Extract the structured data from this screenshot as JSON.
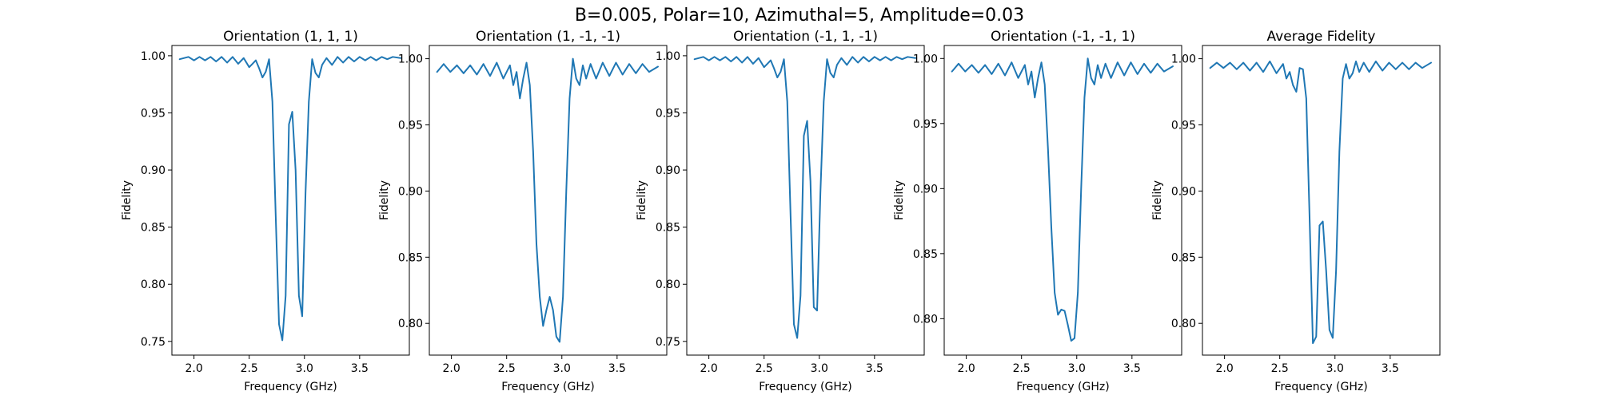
{
  "figure": {
    "suptitle": "B=0.005, Polar=10, Azimuthal=5, Amplitude=0.03",
    "series_color": "#1f77b4"
  },
  "chart_data": [
    {
      "type": "line",
      "title": "Orientation (1, 1, 1)",
      "xlabel": "Frequency (GHz)",
      "ylabel": "Fidelity",
      "xlim": [
        1.8,
        3.95
      ],
      "ylim": [
        0.738,
        1.009
      ],
      "xticks": [
        2.0,
        2.5,
        3.0,
        3.5
      ],
      "xtick_labels": [
        "2.0",
        "2.5",
        "3.0",
        "3.5"
      ],
      "yticks": [
        0.75,
        0.8,
        0.85,
        0.9,
        0.95,
        1.0
      ],
      "ytick_labels": [
        "0.75",
        "0.80",
        "0.85",
        "0.90",
        "0.95",
        "1.00"
      ],
      "x": [
        1.87,
        1.95,
        2.0,
        2.05,
        2.1,
        2.15,
        2.2,
        2.25,
        2.3,
        2.35,
        2.4,
        2.45,
        2.5,
        2.53,
        2.56,
        2.59,
        2.62,
        2.65,
        2.68,
        2.71,
        2.74,
        2.77,
        2.8,
        2.83,
        2.86,
        2.89,
        2.92,
        2.95,
        2.98,
        3.01,
        3.04,
        3.07,
        3.1,
        3.13,
        3.16,
        3.2,
        3.25,
        3.3,
        3.35,
        3.4,
        3.45,
        3.5,
        3.55,
        3.6,
        3.65,
        3.7,
        3.75,
        3.8,
        3.87
      ],
      "series": [
        {
          "values": [
            0.997,
            0.999,
            0.996,
            0.999,
            0.996,
            0.999,
            0.995,
            0.999,
            0.994,
            0.999,
            0.993,
            0.998,
            0.99,
            0.993,
            0.996,
            0.989,
            0.981,
            0.986,
            0.997,
            0.96,
            0.86,
            0.765,
            0.751,
            0.79,
            0.94,
            0.951,
            0.9,
            0.79,
            0.772,
            0.88,
            0.96,
            0.997,
            0.985,
            0.981,
            0.992,
            0.998,
            0.992,
            0.999,
            0.994,
            0.999,
            0.995,
            0.999,
            0.996,
            0.999,
            0.996,
            0.999,
            0.997,
            0.999,
            0.998
          ]
        }
      ]
    },
    {
      "type": "line",
      "title": "Orientation (1, -1, -1)",
      "xlabel": "Frequency (GHz)",
      "ylabel": "Fidelity",
      "xlim": [
        1.8,
        3.95
      ],
      "ylim": [
        0.776,
        1.01
      ],
      "xticks": [
        2.0,
        2.5,
        3.0,
        3.5
      ],
      "xtick_labels": [
        "2.0",
        "2.5",
        "3.0",
        "3.5"
      ],
      "yticks": [
        0.8,
        0.85,
        0.9,
        0.95,
        1.0
      ],
      "ytick_labels": [
        "0.80",
        "0.85",
        "0.90",
        "0.95",
        "1.00"
      ],
      "x": [
        1.87,
        1.93,
        1.99,
        2.05,
        2.11,
        2.17,
        2.23,
        2.29,
        2.35,
        2.41,
        2.47,
        2.53,
        2.56,
        2.59,
        2.62,
        2.65,
        2.68,
        2.71,
        2.74,
        2.77,
        2.8,
        2.83,
        2.86,
        2.89,
        2.92,
        2.95,
        2.98,
        3.01,
        3.04,
        3.07,
        3.1,
        3.13,
        3.16,
        3.19,
        3.22,
        3.26,
        3.31,
        3.37,
        3.43,
        3.49,
        3.55,
        3.61,
        3.67,
        3.73,
        3.79,
        3.87
      ],
      "series": [
        {
          "values": [
            0.99,
            0.996,
            0.99,
            0.995,
            0.989,
            0.995,
            0.988,
            0.996,
            0.987,
            0.997,
            0.985,
            0.995,
            0.98,
            0.99,
            0.97,
            0.985,
            0.997,
            0.98,
            0.93,
            0.86,
            0.82,
            0.798,
            0.81,
            0.82,
            0.81,
            0.79,
            0.786,
            0.82,
            0.9,
            0.97,
            1.0,
            0.985,
            0.98,
            0.995,
            0.985,
            0.996,
            0.985,
            0.997,
            0.987,
            0.997,
            0.988,
            0.996,
            0.989,
            0.996,
            0.99,
            0.994
          ]
        }
      ]
    },
    {
      "type": "line",
      "title": "Orientation (-1, 1, -1)",
      "xlabel": "Frequency (GHz)",
      "ylabel": "Fidelity",
      "xlim": [
        1.8,
        3.95
      ],
      "ylim": [
        0.738,
        1.009
      ],
      "xticks": [
        2.0,
        2.5,
        3.0,
        3.5
      ],
      "xtick_labels": [
        "2.0",
        "2.5",
        "3.0",
        "3.5"
      ],
      "yticks": [
        0.75,
        0.8,
        0.85,
        0.9,
        0.95,
        1.0
      ],
      "ytick_labels": [
        "0.75",
        "0.80",
        "0.85",
        "0.90",
        "0.95",
        "1.00"
      ],
      "x": [
        1.87,
        1.95,
        2.0,
        2.05,
        2.1,
        2.15,
        2.2,
        2.25,
        2.3,
        2.35,
        2.4,
        2.45,
        2.5,
        2.53,
        2.56,
        2.59,
        2.62,
        2.65,
        2.68,
        2.71,
        2.74,
        2.77,
        2.8,
        2.83,
        2.86,
        2.89,
        2.92,
        2.95,
        2.98,
        3.01,
        3.04,
        3.07,
        3.1,
        3.13,
        3.16,
        3.2,
        3.25,
        3.3,
        3.35,
        3.4,
        3.45,
        3.5,
        3.55,
        3.6,
        3.65,
        3.7,
        3.75,
        3.8,
        3.87
      ],
      "series": [
        {
          "values": [
            0.997,
            0.999,
            0.996,
            0.999,
            0.996,
            0.999,
            0.995,
            0.999,
            0.994,
            0.999,
            0.993,
            0.998,
            0.99,
            0.993,
            0.996,
            0.989,
            0.981,
            0.986,
            0.997,
            0.96,
            0.86,
            0.765,
            0.753,
            0.79,
            0.93,
            0.943,
            0.89,
            0.78,
            0.777,
            0.88,
            0.96,
            0.997,
            0.985,
            0.981,
            0.992,
            0.998,
            0.992,
            0.999,
            0.994,
            0.999,
            0.995,
            0.999,
            0.996,
            0.999,
            0.996,
            0.999,
            0.997,
            0.999,
            0.998
          ]
        }
      ]
    },
    {
      "type": "line",
      "title": "Orientation (-1, -1, 1)",
      "xlabel": "Frequency (GHz)",
      "ylabel": "Fidelity",
      "xlim": [
        1.8,
        3.95
      ],
      "ylim": [
        0.772,
        1.01
      ],
      "xticks": [
        2.0,
        2.5,
        3.0,
        3.5
      ],
      "xtick_labels": [
        "2.0",
        "2.5",
        "3.0",
        "3.5"
      ],
      "yticks": [
        0.8,
        0.85,
        0.9,
        0.95,
        1.0
      ],
      "ytick_labels": [
        "0.80",
        "0.85",
        "0.90",
        "0.95",
        "1.00"
      ],
      "x": [
        1.87,
        1.93,
        1.99,
        2.05,
        2.11,
        2.17,
        2.23,
        2.29,
        2.35,
        2.41,
        2.47,
        2.53,
        2.56,
        2.59,
        2.62,
        2.65,
        2.68,
        2.71,
        2.74,
        2.77,
        2.8,
        2.83,
        2.86,
        2.89,
        2.92,
        2.95,
        2.98,
        3.01,
        3.04,
        3.07,
        3.1,
        3.13,
        3.16,
        3.19,
        3.22,
        3.26,
        3.31,
        3.37,
        3.43,
        3.49,
        3.55,
        3.61,
        3.67,
        3.73,
        3.79,
        3.87
      ],
      "series": [
        {
          "values": [
            0.99,
            0.996,
            0.99,
            0.995,
            0.989,
            0.995,
            0.988,
            0.996,
            0.987,
            0.997,
            0.985,
            0.995,
            0.98,
            0.99,
            0.97,
            0.985,
            0.997,
            0.98,
            0.93,
            0.87,
            0.82,
            0.803,
            0.807,
            0.806,
            0.795,
            0.783,
            0.785,
            0.82,
            0.9,
            0.97,
            1.0,
            0.985,
            0.98,
            0.995,
            0.985,
            0.996,
            0.985,
            0.997,
            0.987,
            0.997,
            0.988,
            0.996,
            0.989,
            0.996,
            0.99,
            0.994
          ]
        }
      ]
    },
    {
      "type": "line",
      "title": "Average Fidelity",
      "xlabel": "Frequency (GHz)",
      "ylabel": "Fidelity",
      "xlim": [
        1.8,
        3.95
      ],
      "ylim": [
        0.776,
        1.01
      ],
      "xticks": [
        2.0,
        2.5,
        3.0,
        3.5
      ],
      "xtick_labels": [
        "2.0",
        "2.5",
        "3.0",
        "3.5"
      ],
      "yticks": [
        0.8,
        0.85,
        0.9,
        0.95,
        1.0
      ],
      "ytick_labels": [
        "0.80",
        "0.85",
        "0.90",
        "0.95",
        "1.00"
      ],
      "x": [
        1.87,
        1.93,
        1.99,
        2.05,
        2.11,
        2.17,
        2.23,
        2.29,
        2.35,
        2.41,
        2.47,
        2.53,
        2.56,
        2.59,
        2.62,
        2.65,
        2.68,
        2.71,
        2.74,
        2.77,
        2.8,
        2.83,
        2.86,
        2.89,
        2.92,
        2.95,
        2.98,
        3.01,
        3.04,
        3.07,
        3.1,
        3.13,
        3.16,
        3.19,
        3.22,
        3.26,
        3.31,
        3.37,
        3.43,
        3.49,
        3.55,
        3.61,
        3.67,
        3.73,
        3.79,
        3.87
      ],
      "series": [
        {
          "values": [
            0.993,
            0.997,
            0.993,
            0.997,
            0.992,
            0.997,
            0.991,
            0.997,
            0.99,
            0.998,
            0.989,
            0.996,
            0.985,
            0.99,
            0.98,
            0.975,
            0.993,
            0.992,
            0.97,
            0.88,
            0.785,
            0.79,
            0.874,
            0.877,
            0.84,
            0.795,
            0.789,
            0.84,
            0.93,
            0.985,
            0.996,
            0.985,
            0.989,
            0.998,
            0.99,
            0.997,
            0.99,
            0.998,
            0.991,
            0.997,
            0.992,
            0.997,
            0.992,
            0.997,
            0.993,
            0.997
          ]
        }
      ]
    }
  ]
}
